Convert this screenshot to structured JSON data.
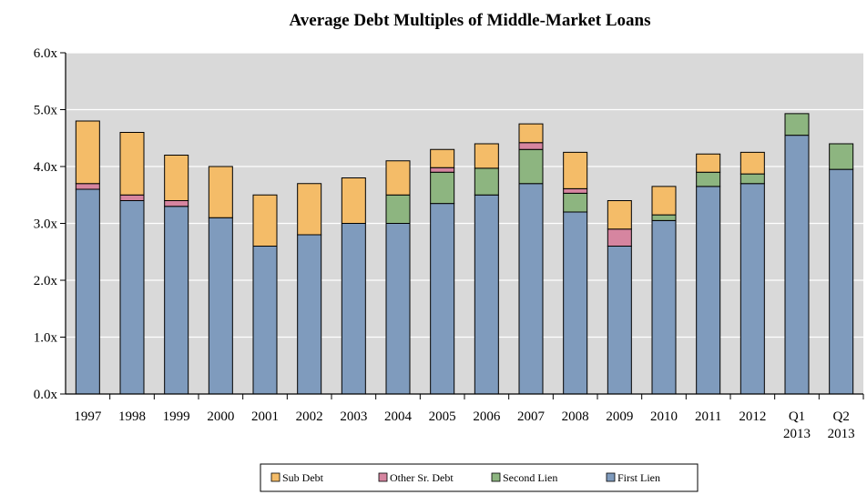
{
  "chart_data": {
    "type": "bar",
    "stacked": true,
    "title": "Average Debt Multiples  of Middle-Market  Loans",
    "xlabel": "",
    "ylabel": "",
    "ylim": [
      0,
      6
    ],
    "y_ticks": [
      "0.0x",
      "1.0x",
      "2.0x",
      "3.0x",
      "4.0x",
      "5.0x",
      "6.0x"
    ],
    "y_tick_values": [
      0,
      1,
      2,
      3,
      4,
      5,
      6
    ],
    "grid": true,
    "legend_position": "bottom",
    "categories": [
      [
        "1997"
      ],
      [
        "1998"
      ],
      [
        "1999"
      ],
      [
        "2000"
      ],
      [
        "2001"
      ],
      [
        "2002"
      ],
      [
        "2003"
      ],
      [
        "2004"
      ],
      [
        "2005"
      ],
      [
        "2006"
      ],
      [
        "2007"
      ],
      [
        "2008"
      ],
      [
        "2009"
      ],
      [
        "2010"
      ],
      [
        "2011"
      ],
      [
        "2012"
      ],
      [
        "Q1",
        "2013"
      ],
      [
        "Q2",
        "2013"
      ]
    ],
    "series": [
      {
        "name": "First Lien",
        "color": "#7f9bbd",
        "values": [
          3.6,
          3.4,
          3.3,
          3.1,
          2.6,
          2.8,
          3.0,
          3.0,
          3.35,
          3.5,
          3.7,
          3.2,
          2.6,
          3.05,
          3.65,
          3.7,
          4.55,
          3.95
        ]
      },
      {
        "name": "Second Lien",
        "color": "#8db580",
        "values": [
          0,
          0,
          0,
          0,
          0,
          0,
          0,
          0.5,
          0.55,
          0.47,
          0.6,
          0.33,
          0,
          0.1,
          0.25,
          0.17,
          0.38,
          0.45
        ]
      },
      {
        "name": "Other Sr. Debt",
        "color": "#d685a0",
        "values": [
          0.1,
          0.1,
          0.1,
          0,
          0,
          0,
          0,
          0,
          0.08,
          0,
          0.12,
          0.08,
          0.3,
          0,
          0,
          0,
          0,
          0
        ]
      },
      {
        "name": "Sub Debt",
        "color": "#f4bc68",
        "values": [
          1.1,
          1.1,
          0.8,
          0.9,
          0.9,
          0.9,
          0.8,
          0.6,
          0.32,
          0.43,
          0.33,
          0.64,
          0.5,
          0.5,
          0.32,
          0.38,
          0,
          0
        ]
      }
    ],
    "legend_order": [
      "Sub Debt",
      "Other Sr. Debt",
      "Second Lien",
      "First Lien"
    ],
    "legend_labels": [
      "Sub Debt",
      "Other Sr. Debt",
      "Second Lien",
      "First Lien"
    ],
    "plot_background": "#d9d9d9",
    "grid_color": "#ffffff"
  }
}
